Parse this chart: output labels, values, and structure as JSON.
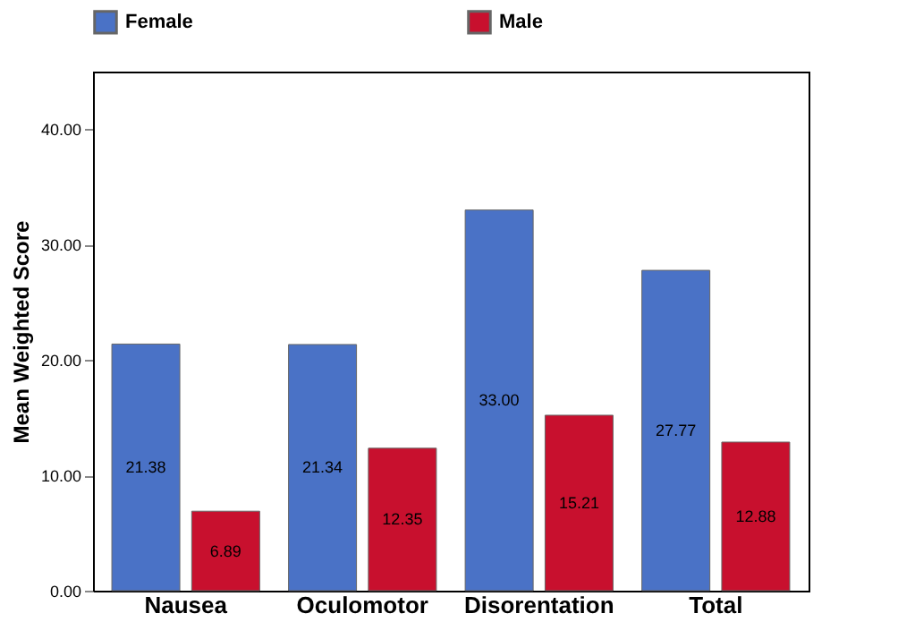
{
  "chart_data": {
    "type": "bar",
    "ylabel": "Mean Weighted Score",
    "categories": [
      "Nausea",
      "Oculomotor",
      "Disorentation",
      "Total"
    ],
    "series": [
      {
        "name": "Female",
        "color": "#4a72c6",
        "values": [
          21.38,
          21.34,
          33.0,
          27.77
        ]
      },
      {
        "name": "Male",
        "color": "#c8102e",
        "values": [
          6.89,
          12.35,
          15.21,
          12.88
        ]
      }
    ],
    "value_labels": [
      [
        "21.38",
        "21.34",
        "33.00",
        "27.77"
      ],
      [
        "6.89",
        "12.35",
        "15.21",
        "12.88"
      ]
    ],
    "ylim": [
      0,
      45
    ],
    "yticks": [
      {
        "value": 0,
        "label": "0.00"
      },
      {
        "value": 10,
        "label": "10.00"
      },
      {
        "value": 20,
        "label": "20.00"
      },
      {
        "value": 30,
        "label": "30.00"
      },
      {
        "value": 40,
        "label": "40.00"
      }
    ],
    "grid": false,
    "legend": "top"
  }
}
